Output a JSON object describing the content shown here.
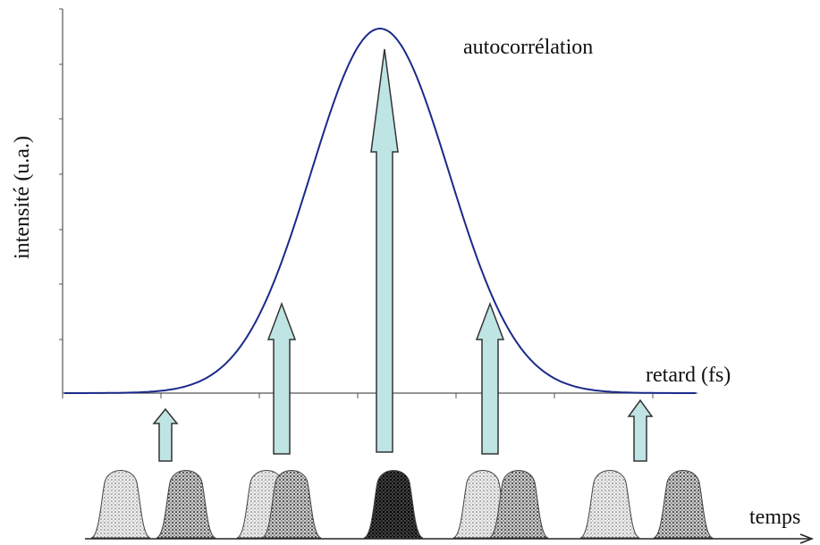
{
  "labels": {
    "curve": "autocorrélation",
    "y_axis": "intensité (u.a.)",
    "x_axis": "retard (fs)",
    "time_axis": "temps"
  }
}
